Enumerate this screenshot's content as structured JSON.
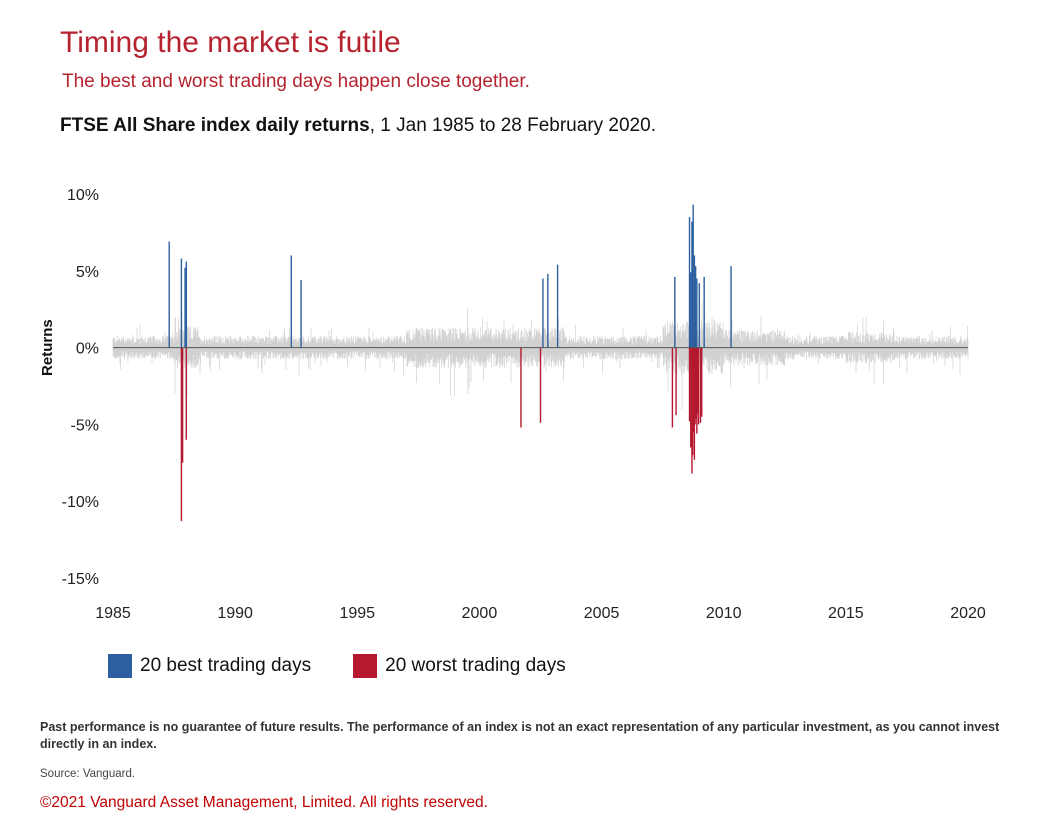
{
  "header": {
    "title": "Timing the market is futile",
    "subtitle": "The best and worst trading days happen close together.",
    "chart_heading_bold": "FTSE All Share index daily returns",
    "chart_heading_rest": ", 1 Jan 1985 to 28 February 2020."
  },
  "chart_data": {
    "type": "bar",
    "title": "FTSE All Share index daily returns",
    "ylabel": "Returns",
    "xlabel": "",
    "xlim": [
      1985,
      2020
    ],
    "ylim": [
      -15,
      10
    ],
    "y_ticks": [
      10,
      5,
      0,
      -5,
      -10,
      -15
    ],
    "y_tick_labels": [
      "10%",
      "5%",
      "0%",
      "-5%",
      "-10%",
      "-15%"
    ],
    "x_ticks": [
      1985,
      1990,
      1995,
      2000,
      2005,
      2010,
      2015,
      2020
    ],
    "x_tick_labels": [
      "1985",
      "1990",
      "1995",
      "2000",
      "2005",
      "2010",
      "2015",
      "2020"
    ],
    "legend_placement": "bottom-left",
    "colors": {
      "best": "#2b5fa0",
      "worst": "#b5182f",
      "other": "#c8c8c8",
      "zero_line": "#555555"
    },
    "series": [
      {
        "name": "20 best trading days",
        "points": [
          {
            "x": 1987.3,
            "y": 6.9
          },
          {
            "x": 1987.8,
            "y": 5.8
          },
          {
            "x": 1987.95,
            "y": 5.2
          },
          {
            "x": 1988.0,
            "y": 5.6
          },
          {
            "x": 1992.3,
            "y": 6.0
          },
          {
            "x": 1992.7,
            "y": 4.4
          },
          {
            "x": 2002.6,
            "y": 4.5
          },
          {
            "x": 2002.8,
            "y": 4.8
          },
          {
            "x": 2003.2,
            "y": 5.4
          },
          {
            "x": 2008.0,
            "y": 4.6
          },
          {
            "x": 2008.6,
            "y": 8.5
          },
          {
            "x": 2008.65,
            "y": 4.9
          },
          {
            "x": 2008.7,
            "y": 8.2
          },
          {
            "x": 2008.75,
            "y": 9.3
          },
          {
            "x": 2008.8,
            "y": 6.0
          },
          {
            "x": 2008.85,
            "y": 5.3
          },
          {
            "x": 2008.9,
            "y": 4.5
          },
          {
            "x": 2009.0,
            "y": 4.2
          },
          {
            "x": 2009.2,
            "y": 4.6
          },
          {
            "x": 2010.3,
            "y": 5.3
          }
        ]
      },
      {
        "name": "20 worst trading days",
        "points": [
          {
            "x": 1987.8,
            "y": -11.3
          },
          {
            "x": 1987.85,
            "y": -7.5
          },
          {
            "x": 1988.0,
            "y": -6.0
          },
          {
            "x": 2001.7,
            "y": -5.2
          },
          {
            "x": 2002.5,
            "y": -4.9
          },
          {
            "x": 2007.9,
            "y": -5.2
          },
          {
            "x": 2008.05,
            "y": -4.4
          },
          {
            "x": 2008.6,
            "y": -4.8
          },
          {
            "x": 2008.65,
            "y": -6.5
          },
          {
            "x": 2008.7,
            "y": -8.2
          },
          {
            "x": 2008.73,
            "y": -7.0
          },
          {
            "x": 2008.76,
            "y": -5.5
          },
          {
            "x": 2008.8,
            "y": -7.3
          },
          {
            "x": 2008.83,
            "y": -5.0
          },
          {
            "x": 2008.86,
            "y": -4.6
          },
          {
            "x": 2008.9,
            "y": -5.6
          },
          {
            "x": 2008.93,
            "y": -4.3
          },
          {
            "x": 2008.97,
            "y": -5.0
          },
          {
            "x": 2009.05,
            "y": -4.9
          },
          {
            "x": 2009.1,
            "y": -4.5
          }
        ]
      }
    ]
  },
  "legend": {
    "best_label": "20 best trading days",
    "worst_label": "20 worst trading days"
  },
  "footer": {
    "disclaimer": "Past performance is no guarantee of future results. The performance of an index is not an exact representation of any particular investment, as you cannot invest directly in an index.",
    "source": "Source: Vanguard.",
    "copyright": "©2021 Vanguard Asset Management, Limited. All rights reserved."
  }
}
